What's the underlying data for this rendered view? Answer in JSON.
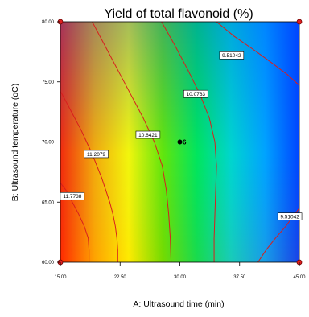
{
  "chart_data": {
    "type": "contour",
    "title": "Yield of total flavonoid (%)",
    "xlabel": "A: Ultrasound time (min)",
    "ylabel": "B: Ultrasound temperature (oC)",
    "xlim": [
      15,
      45
    ],
    "ylim": [
      60,
      80
    ],
    "x_ticks": [
      "15.00",
      "22.50",
      "30.00",
      "37.50",
      "45.00"
    ],
    "y_ticks": [
      "60.00",
      "65.00",
      "70.00",
      "75.00",
      "80.00"
    ],
    "colormap": [
      "#ff2a00",
      "#ffb000",
      "#ffff00",
      "#66ee00",
      "#00ee55",
      "#00ddcc",
      "#00a8ff",
      "#0044ff"
    ],
    "contours": [
      {
        "level": 11.7738,
        "label": "11.7738",
        "label_at": [
          16.5,
          65.5
        ],
        "points": [
          [
            18.6,
            60
          ],
          [
            18.6,
            61
          ],
          [
            18.5,
            62
          ],
          [
            18.0,
            63
          ],
          [
            17.3,
            64
          ],
          [
            16.5,
            65
          ],
          [
            15.7,
            66
          ],
          [
            15,
            66.6
          ]
        ]
      },
      {
        "level": 11.2079,
        "label": "11.2079",
        "label_at": [
          19.5,
          69.0
        ],
        "points": [
          [
            22.2,
            60
          ],
          [
            22.2,
            61
          ],
          [
            22.1,
            62
          ],
          [
            21.9,
            63
          ],
          [
            21.6,
            64
          ],
          [
            21.2,
            65
          ],
          [
            20.7,
            66
          ],
          [
            20.2,
            67
          ],
          [
            19.6,
            68
          ],
          [
            19.0,
            69
          ],
          [
            18.3,
            70
          ],
          [
            17.6,
            71
          ],
          [
            16.8,
            72
          ],
          [
            16.0,
            73
          ],
          [
            15.2,
            74
          ],
          [
            15,
            74.2
          ]
        ]
      },
      {
        "level": 10.6421,
        "label": "10.6421",
        "label_at": [
          26.0,
          70.6
        ],
        "points": [
          [
            28.9,
            60
          ],
          [
            28.8,
            62
          ],
          [
            28.6,
            64
          ],
          [
            28.3,
            66
          ],
          [
            27.8,
            68
          ],
          [
            26.8,
            70
          ],
          [
            25.4,
            72
          ],
          [
            23.8,
            74
          ],
          [
            22.2,
            76
          ],
          [
            20.6,
            78
          ],
          [
            19.0,
            80
          ]
        ]
      },
      {
        "level": 10.0763,
        "label": "10.0763",
        "label_at": [
          32.0,
          74.0
        ],
        "points": [
          [
            34.3,
            60
          ],
          [
            34.3,
            62
          ],
          [
            34.4,
            64
          ],
          [
            34.5,
            66
          ],
          [
            34.6,
            68
          ],
          [
            34.4,
            70
          ],
          [
            33.7,
            72
          ],
          [
            32.5,
            74
          ],
          [
            31.0,
            76
          ],
          [
            29.4,
            78
          ],
          [
            27.7,
            80
          ]
        ]
      },
      {
        "level": 9.51042,
        "label": "9.51042",
        "label_at": [
          36.5,
          77.2
        ],
        "points": [
          [
            45,
            74.7
          ],
          [
            43.5,
            75.6
          ],
          [
            41.5,
            76.6
          ],
          [
            39.2,
            77.7
          ],
          [
            36.8,
            78.8
          ],
          [
            34.6,
            80
          ]
        ]
      },
      {
        "level": 9.51042,
        "label": "9.51042",
        "label_at": [
          43.8,
          63.8
        ],
        "points": [
          [
            39.8,
            60
          ],
          [
            40.8,
            61
          ],
          [
            42.0,
            62
          ],
          [
            43.3,
            63
          ],
          [
            45,
            64.5
          ]
        ]
      }
    ],
    "design_points": [
      {
        "x": 15,
        "y": 80
      },
      {
        "x": 45,
        "y": 80
      },
      {
        "x": 15,
        "y": 60
      },
      {
        "x": 45,
        "y": 60
      },
      {
        "x": 30,
        "y": 70,
        "label": "6"
      }
    ],
    "grid": false,
    "legend": "none"
  }
}
